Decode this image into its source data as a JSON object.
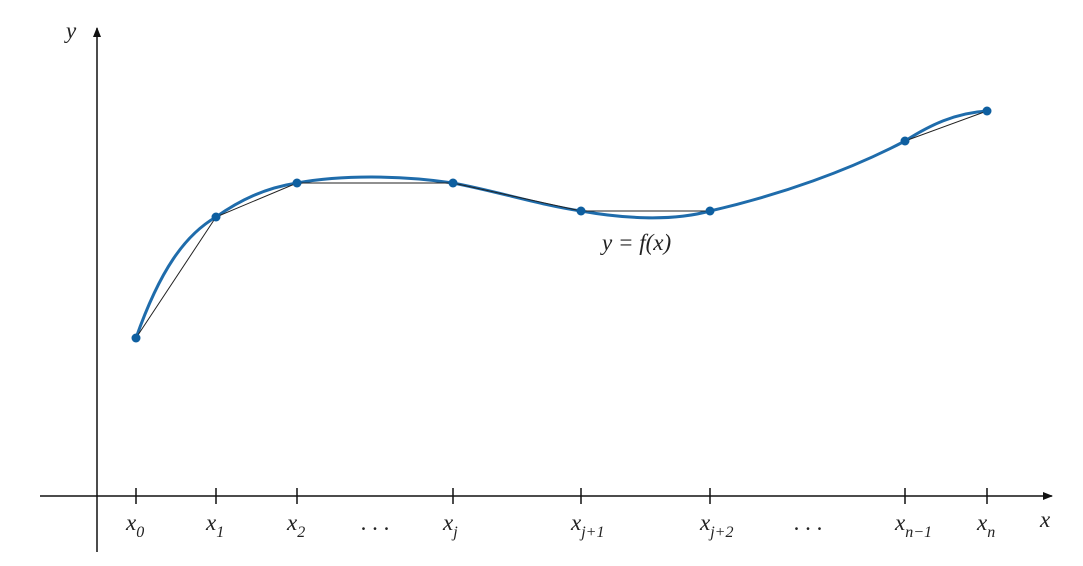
{
  "axes": {
    "y_label": "y",
    "x_label": "x"
  },
  "curve_label": "y = f(x)",
  "ticks": [
    {
      "base": "x",
      "sub": "0"
    },
    {
      "base": "x",
      "sub": "1"
    },
    {
      "base": "x",
      "sub": "2"
    },
    {
      "base": "x",
      "sub": "j"
    },
    {
      "base": "x",
      "sub": "j+1"
    },
    {
      "base": "x",
      "sub": "j+2"
    },
    {
      "base": "x",
      "sub": "n−1"
    },
    {
      "base": "x",
      "sub": "n"
    }
  ],
  "ellipses": [
    ". . .",
    ". . ."
  ]
}
